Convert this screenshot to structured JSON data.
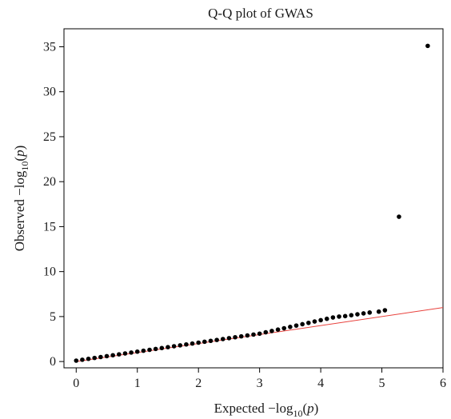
{
  "chart_data": {
    "type": "scatter",
    "title": "Q-Q plot of GWAS",
    "xlabel": {
      "pre": "Expected −log",
      "sub": "10",
      "open": "(",
      "var": "p",
      "close": ")"
    },
    "ylabel": {
      "pre": "Observed −log",
      "sub": "10",
      "open": "(",
      "var": "p",
      "close": ")"
    },
    "xlim": [
      -0.2,
      6.0
    ],
    "ylim": [
      -0.7,
      37.0
    ],
    "xticks": [
      0,
      1,
      2,
      3,
      4,
      5,
      6
    ],
    "yticks": [
      0,
      5,
      10,
      15,
      20,
      25,
      30,
      35
    ],
    "grid": false,
    "point_color": "#000000",
    "reference_line": {
      "x": [
        0,
        6
      ],
      "y": [
        0,
        6
      ],
      "color": "#e8413c"
    },
    "points": {
      "x": [
        0.0,
        0.1,
        0.2,
        0.3,
        0.4,
        0.5,
        0.6,
        0.7,
        0.8,
        0.9,
        1.0,
        1.1,
        1.2,
        1.3,
        1.4,
        1.5,
        1.6,
        1.7,
        1.8,
        1.9,
        2.0,
        2.1,
        2.2,
        2.3,
        2.4,
        2.5,
        2.6,
        2.7,
        2.8,
        2.9,
        3.0,
        3.1,
        3.2,
        3.3,
        3.4,
        3.5,
        3.6,
        3.7,
        3.8,
        3.9,
        4.0,
        4.1,
        4.2,
        4.3,
        4.4,
        4.5,
        4.6,
        4.7,
        4.8,
        4.95,
        5.05,
        5.28,
        5.75
      ],
      "y": [
        0.1,
        0.2,
        0.3,
        0.4,
        0.5,
        0.6,
        0.7,
        0.8,
        0.9,
        1.0,
        1.1,
        1.2,
        1.3,
        1.4,
        1.5,
        1.6,
        1.7,
        1.8,
        1.9,
        2.0,
        2.1,
        2.2,
        2.3,
        2.4,
        2.5,
        2.6,
        2.7,
        2.8,
        2.9,
        3.0,
        3.1,
        3.25,
        3.4,
        3.55,
        3.7,
        3.85,
        4.0,
        4.15,
        4.3,
        4.45,
        4.6,
        4.75,
        4.9,
        5.0,
        5.05,
        5.15,
        5.25,
        5.35,
        5.45,
        5.55,
        5.7,
        16.1,
        35.1
      ]
    }
  }
}
